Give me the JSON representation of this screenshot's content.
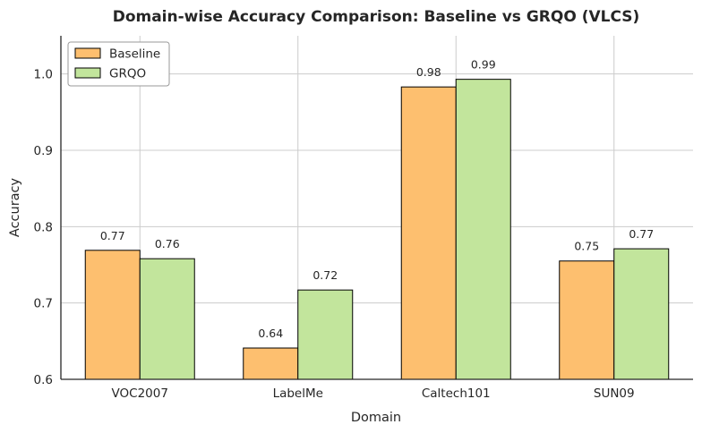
{
  "chart_data": {
    "type": "bar",
    "title": "Domain-wise Accuracy Comparison: Baseline vs GRQO (VLCS)",
    "xlabel": "Domain",
    "ylabel": "Accuracy",
    "categories": [
      "VOC2007",
      "LabelMe",
      "Caltech101",
      "SUN09"
    ],
    "series": [
      {
        "name": "Baseline",
        "color": "#fdbf6f",
        "values": [
          0.769,
          0.641,
          0.983,
          0.755
        ],
        "labels": [
          "0.77",
          "0.64",
          "0.98",
          "0.75"
        ]
      },
      {
        "name": "GRQO",
        "color": "#c2e59c",
        "values": [
          0.758,
          0.717,
          0.993,
          0.771
        ],
        "labels": [
          "0.76",
          "0.72",
          "0.99",
          "0.77"
        ]
      }
    ],
    "ylim": [
      0.6,
      1.05
    ],
    "yticks": [
      0.6,
      0.7,
      0.8,
      0.9,
      1.0
    ],
    "ytick_labels": [
      "0.6",
      "0.7",
      "0.8",
      "0.9",
      "1.0"
    ],
    "grid": true,
    "legend_position": "top-left"
  }
}
